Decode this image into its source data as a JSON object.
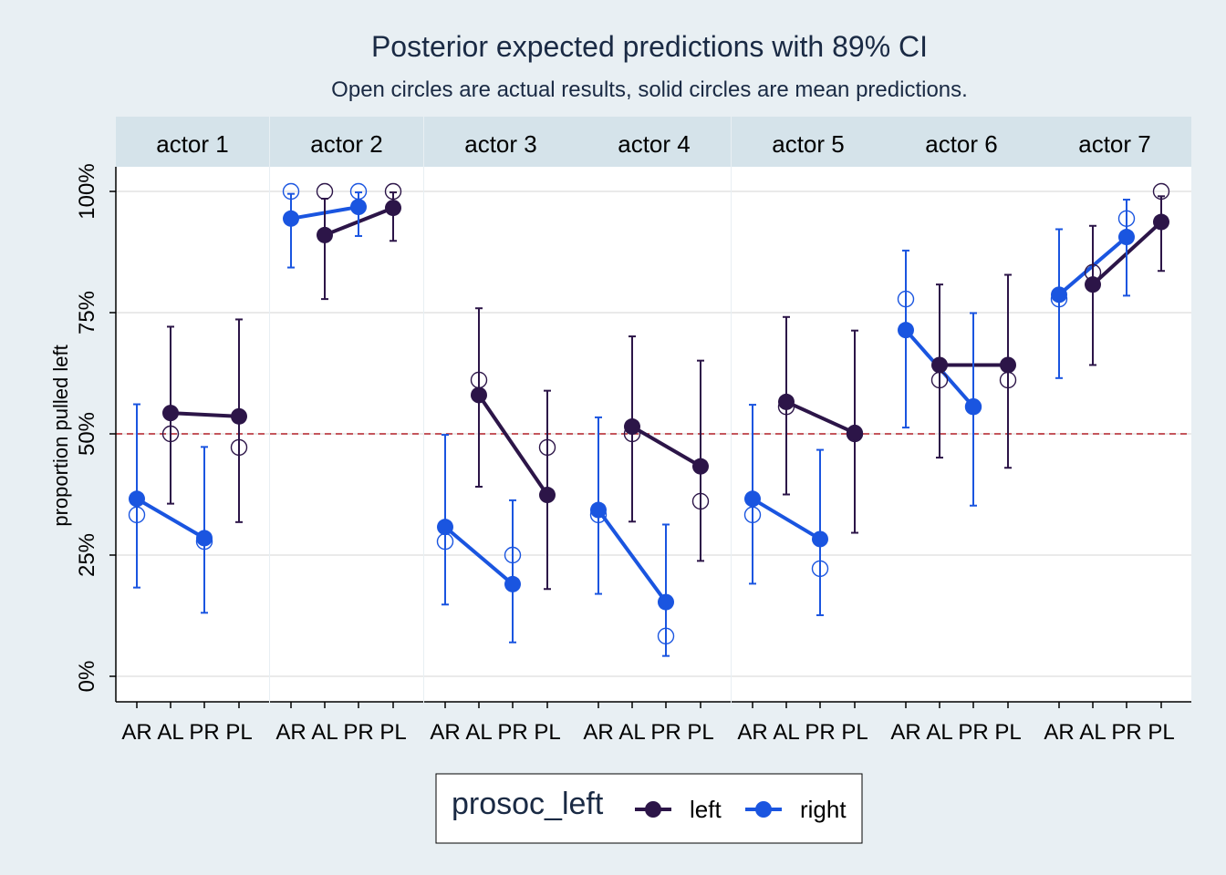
{
  "chart_data": {
    "type": "line",
    "title": "Posterior expected predictions with 89% CI",
    "subtitle": "Open circles are actual results, solid circles are mean predictions.",
    "ylabel": "proportion pulled left",
    "ylim": [
      0,
      1
    ],
    "yticks": [
      {
        "value": 0,
        "label": "0%"
      },
      {
        "value": 0.25,
        "label": "25%"
      },
      {
        "value": 0.5,
        "label": "50%"
      },
      {
        "value": 0.75,
        "label": "75%"
      },
      {
        "value": 1,
        "label": "100%"
      }
    ],
    "reference_line": 0.5,
    "categories": [
      "AR",
      "AL",
      "PR",
      "PL"
    ],
    "legend": {
      "title": "prosoc_left",
      "placement": "bottom",
      "entries": [
        {
          "name": "left",
          "color": "#2c1548"
        },
        {
          "name": "right",
          "color": "#1a55e0"
        }
      ]
    },
    "panels": [
      {
        "label": "actor 1",
        "points": [
          {
            "cat": "AR",
            "group": "right",
            "mean": 0.366,
            "lo": 0.183,
            "hi": 0.561,
            "obs": 0.333
          },
          {
            "cat": "AL",
            "group": "left",
            "mean": 0.543,
            "lo": 0.356,
            "hi": 0.721,
            "obs": 0.5
          },
          {
            "cat": "PR",
            "group": "right",
            "mean": 0.285,
            "lo": 0.131,
            "hi": 0.473,
            "obs": 0.278
          },
          {
            "cat": "PL",
            "group": "left",
            "mean": 0.536,
            "lo": 0.318,
            "hi": 0.736,
            "obs": 0.472
          }
        ]
      },
      {
        "label": "actor 2",
        "points": [
          {
            "cat": "AR",
            "group": "right",
            "mean": 0.944,
            "lo": 0.843,
            "hi": 0.995,
            "obs": 1.0
          },
          {
            "cat": "AL",
            "group": "left",
            "mean": 0.91,
            "lo": 0.778,
            "hi": 0.985,
            "obs": 1.0
          },
          {
            "cat": "PR",
            "group": "right",
            "mean": 0.968,
            "lo": 0.908,
            "hi": 0.998,
            "obs": 1.0
          },
          {
            "cat": "PL",
            "group": "left",
            "mean": 0.966,
            "lo": 0.898,
            "hi": 0.998,
            "obs": 1.0
          }
        ]
      },
      {
        "label": "actor 3",
        "points": [
          {
            "cat": "AR",
            "group": "right",
            "mean": 0.308,
            "lo": 0.148,
            "hi": 0.498,
            "obs": 0.278
          },
          {
            "cat": "AL",
            "group": "left",
            "mean": 0.58,
            "lo": 0.391,
            "hi": 0.759,
            "obs": 0.611
          },
          {
            "cat": "PR",
            "group": "right",
            "mean": 0.19,
            "lo": 0.07,
            "hi": 0.363,
            "obs": 0.25
          },
          {
            "cat": "PL",
            "group": "left",
            "mean": 0.374,
            "lo": 0.18,
            "hi": 0.589,
            "obs": 0.472
          }
        ]
      },
      {
        "label": "actor 4",
        "points": [
          {
            "cat": "AR",
            "group": "right",
            "mean": 0.343,
            "lo": 0.17,
            "hi": 0.534,
            "obs": 0.333
          },
          {
            "cat": "AL",
            "group": "left",
            "mean": 0.515,
            "lo": 0.319,
            "hi": 0.701,
            "obs": 0.5
          },
          {
            "cat": "PR",
            "group": "right",
            "mean": 0.153,
            "lo": 0.042,
            "hi": 0.313,
            "obs": 0.083
          },
          {
            "cat": "PL",
            "group": "left",
            "mean": 0.433,
            "lo": 0.238,
            "hi": 0.651,
            "obs": 0.361
          }
        ]
      },
      {
        "label": "actor 5",
        "points": [
          {
            "cat": "AR",
            "group": "right",
            "mean": 0.366,
            "lo": 0.191,
            "hi": 0.56,
            "obs": 0.333
          },
          {
            "cat": "AL",
            "group": "left",
            "mean": 0.566,
            "lo": 0.375,
            "hi": 0.741,
            "obs": 0.556
          },
          {
            "cat": "PR",
            "group": "right",
            "mean": 0.283,
            "lo": 0.126,
            "hi": 0.467,
            "obs": 0.222
          },
          {
            "cat": "PL",
            "group": "left",
            "mean": 0.502,
            "lo": 0.296,
            "hi": 0.713,
            "obs": 0.5
          }
        ]
      },
      {
        "label": "actor 6",
        "points": [
          {
            "cat": "AR",
            "group": "right",
            "mean": 0.714,
            "lo": 0.513,
            "hi": 0.878,
            "obs": 0.778
          },
          {
            "cat": "AL",
            "group": "left",
            "mean": 0.642,
            "lo": 0.451,
            "hi": 0.808,
            "obs": 0.611
          },
          {
            "cat": "PR",
            "group": "right",
            "mean": 0.556,
            "lo": 0.352,
            "hi": 0.749,
            "obs": 0.556
          },
          {
            "cat": "PL",
            "group": "left",
            "mean": 0.642,
            "lo": 0.43,
            "hi": 0.828,
            "obs": 0.611
          }
        ]
      },
      {
        "label": "actor 7",
        "points": [
          {
            "cat": "AR",
            "group": "right",
            "mean": 0.787,
            "lo": 0.615,
            "hi": 0.922,
            "obs": 0.778
          },
          {
            "cat": "AL",
            "group": "left",
            "mean": 0.808,
            "lo": 0.642,
            "hi": 0.929,
            "obs": 0.833
          },
          {
            "cat": "PR",
            "group": "right",
            "mean": 0.906,
            "lo": 0.785,
            "hi": 0.983,
            "obs": 0.944
          },
          {
            "cat": "PL",
            "group": "left",
            "mean": 0.937,
            "lo": 0.836,
            "hi": 0.99,
            "obs": 1.0
          }
        ]
      }
    ]
  }
}
